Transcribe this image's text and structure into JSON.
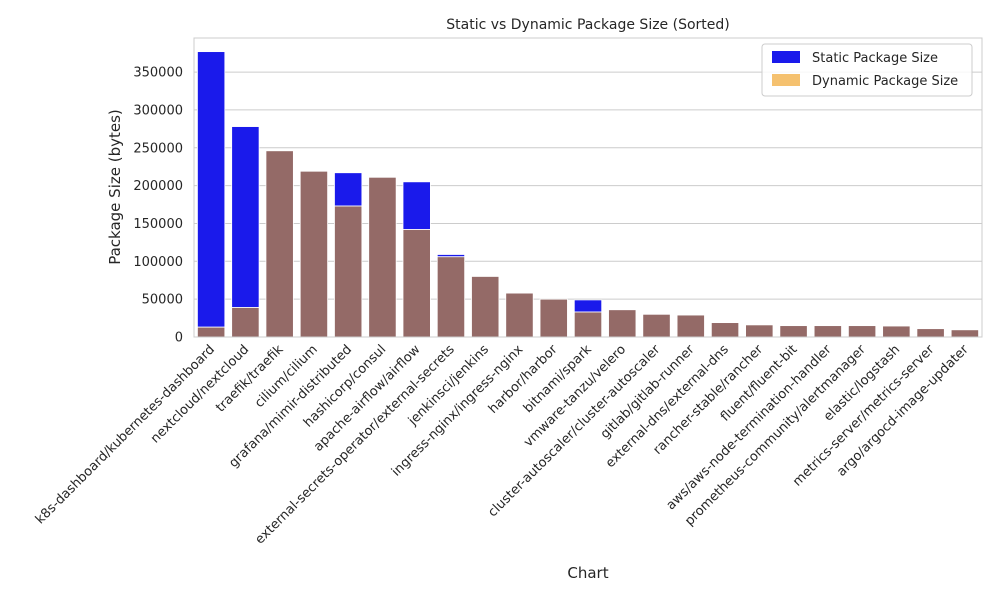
{
  "chart_data": {
    "type": "bar",
    "title": "Static vs Dynamic Package Size (Sorted)",
    "xlabel": "Chart",
    "ylabel": "Package Size (bytes)",
    "ylim": [
      0,
      395000
    ],
    "yticks": [
      0,
      50000,
      100000,
      150000,
      200000,
      250000,
      300000,
      350000
    ],
    "ytick_labels": [
      "0",
      "50000",
      "100000",
      "150000",
      "200000",
      "250000",
      "300000",
      "350000"
    ],
    "grid": true,
    "legend_position": "top-right",
    "categories": [
      "k8s-dashboard/kubernetes-dashboard",
      "nextcloud/nextcloud",
      "traefik/traefik",
      "cilium/cilium",
      "grafana/mimir-distributed",
      "hashicorp/consul",
      "apache-airflow/airflow",
      "external-secrets-operator/external-secrets",
      "jenkinsci/jenkins",
      "ingress-nginx/ingress-nginx",
      "harbor/harbor",
      "bitnami/spark",
      "vmware-tanzu/velero",
      "cluster-autoscaler/cluster-autoscaler",
      "gitlab/gitlab-runner",
      "external-dns/external-dns",
      "rancher-stable/rancher",
      "fluent/fluent-bit",
      "aws/aws-node-termination-handler",
      "prometheus-community/alertmanager",
      "elastic/logstash",
      "metrics-server/metrics-server",
      "argo/argocd-image-updater"
    ],
    "series": [
      {
        "name": "Static Package Size",
        "color": "#1a1aeb",
        "values": [
          377000,
          278000,
          246000,
          219000,
          217000,
          211000,
          205000,
          109000,
          80000,
          58000,
          50000,
          49000,
          36000,
          30000,
          29000,
          19000,
          16000,
          15000,
          15000,
          15000,
          14500,
          11000,
          9500
        ]
      },
      {
        "name": "Dynamic Package Size",
        "color": "#f5c16f",
        "values": [
          13000,
          39000,
          246000,
          219000,
          173000,
          211000,
          142000,
          106000,
          80000,
          58000,
          50000,
          33000,
          36000,
          30000,
          29000,
          19000,
          16000,
          15000,
          15000,
          15000,
          14500,
          11000,
          9500
        ]
      }
    ],
    "overlap_color": "#946a67"
  }
}
